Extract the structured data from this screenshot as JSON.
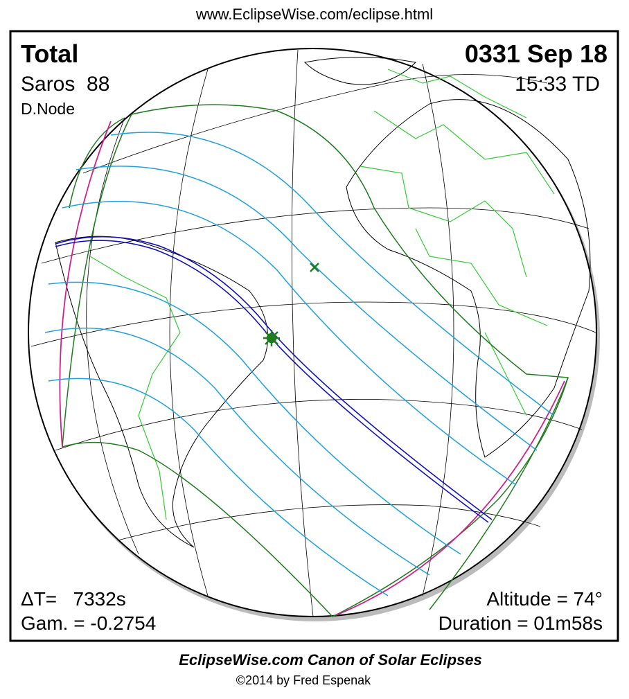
{
  "header": {
    "url": "www.EclipseWise.com/eclipse.html"
  },
  "eclipse": {
    "type": "Total",
    "date": "0331 Sep 18",
    "saros": "Saros  88",
    "time": "15:33 TD",
    "node": "D.Node",
    "delta_t": "ΔT=   7332s",
    "gamma": "Gam. = -0.2754",
    "altitude": "Altitude = 74°",
    "duration": "Duration = 01m58s"
  },
  "footer": {
    "title": "EclipseWise.com Canon of Solar Eclipses",
    "copyright": "©2014 by Fred Espenak"
  }
}
